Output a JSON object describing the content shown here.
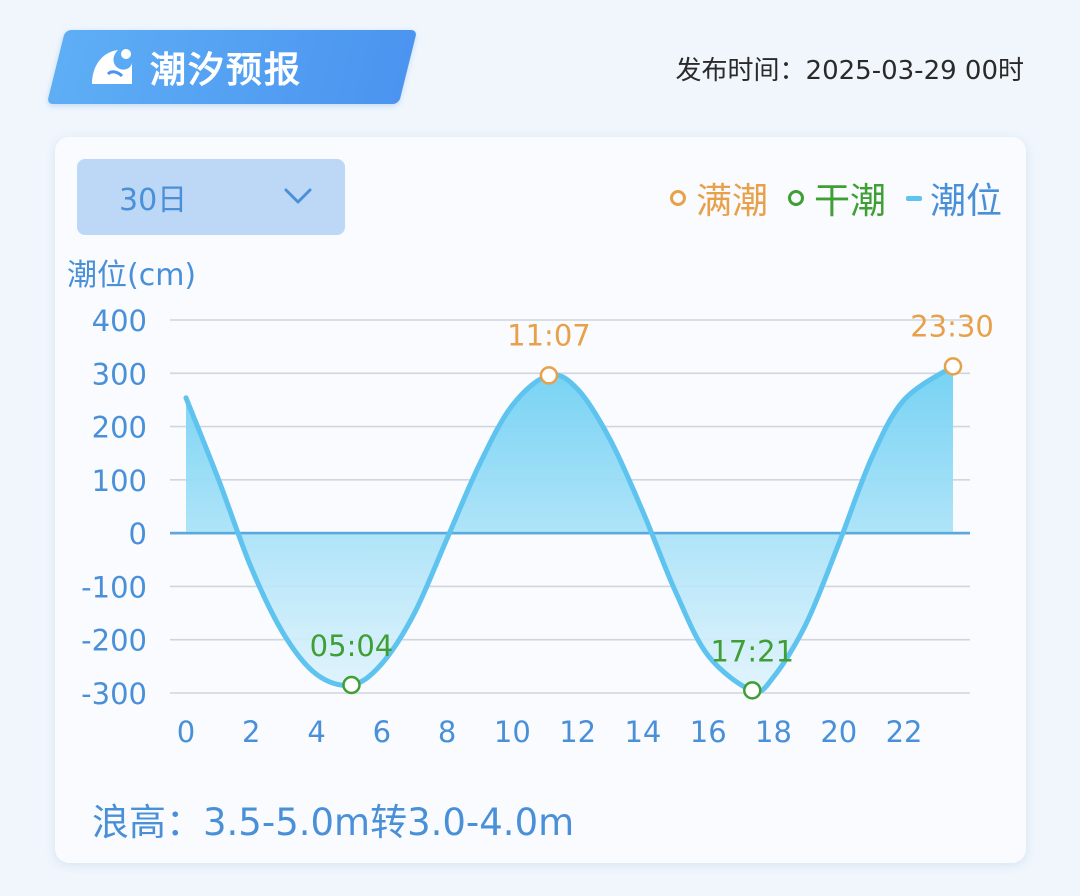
{
  "header": {
    "title": "潮汐预报",
    "icon": "wave-icon",
    "publish_label": "发布时间：",
    "publish_time": "2025-03-29 00时"
  },
  "selector": {
    "value": "30日"
  },
  "legend": {
    "high": "满潮",
    "low": "干潮",
    "level": "潮位"
  },
  "colors": {
    "high": "#e8a04a",
    "low": "#3f9f35",
    "line": "#5ec3ee",
    "axis_text": "#4a90d9",
    "badge": "#4b94f0"
  },
  "wave": {
    "label": "浪高：",
    "value": "3.5-5.0m转3.0-4.0m"
  },
  "chart_data": {
    "type": "area",
    "title": "",
    "ylabel": "潮位(cm)",
    "xlabel": "",
    "xlim": [
      0,
      23.5
    ],
    "ylim": [
      -300,
      400
    ],
    "xticks": [
      0,
      2,
      4,
      6,
      8,
      10,
      12,
      14,
      16,
      18,
      20,
      22
    ],
    "yticks": [
      400,
      300,
      200,
      100,
      0,
      -100,
      -200,
      -300
    ],
    "grid": true,
    "legend_position": "top-right",
    "series": [
      {
        "name": "潮位",
        "x": [
          0,
          1,
          2,
          3,
          4,
          5.07,
          6,
          7,
          8,
          9,
          10,
          11.12,
          12,
          13,
          14,
          15,
          16,
          17.35,
          18,
          19,
          20,
          21,
          22,
          23.5
        ],
        "y": [
          254,
          100,
          -65,
          -190,
          -265,
          -285,
          -245,
          -150,
          -10,
          130,
          240,
          296,
          270,
          175,
          40,
          -110,
          -230,
          -295,
          -270,
          -170,
          -20,
          140,
          250,
          313
        ]
      }
    ],
    "extremes": [
      {
        "kind": "low",
        "time": "05:04",
        "x": 5.07,
        "y": -285
      },
      {
        "kind": "high",
        "time": "11:07",
        "x": 11.12,
        "y": 296
      },
      {
        "kind": "low",
        "time": "17:21",
        "x": 17.35,
        "y": -295
      },
      {
        "kind": "high",
        "time": "23:30",
        "x": 23.5,
        "y": 313
      }
    ]
  }
}
